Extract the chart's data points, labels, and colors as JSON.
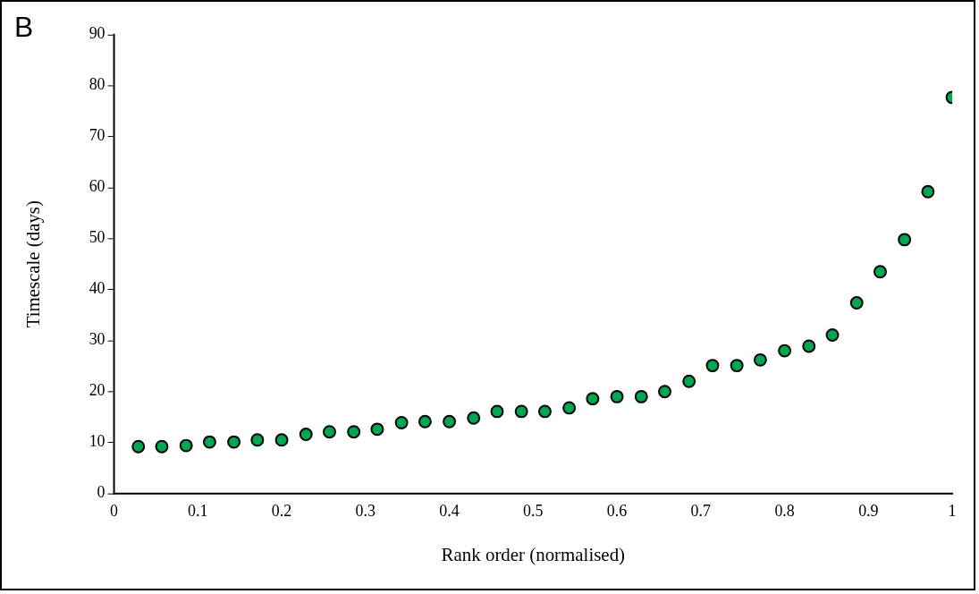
{
  "chart_data": {
    "type": "scatter",
    "xlabel": "Rank order (normalised)",
    "ylabel": "Timescale (days)",
    "annotations": [
      "B"
    ],
    "x": [
      0.029,
      0.057,
      0.086,
      0.114,
      0.143,
      0.171,
      0.2,
      0.229,
      0.257,
      0.286,
      0.314,
      0.343,
      0.371,
      0.4,
      0.429,
      0.457,
      0.486,
      0.514,
      0.543,
      0.571,
      0.6,
      0.629,
      0.657,
      0.686,
      0.714,
      0.743,
      0.771,
      0.8,
      0.829,
      0.857,
      0.886,
      0.914,
      0.943,
      0.971,
      1
    ],
    "series": [
      {
        "color": "#00a651",
        "values": [
          9.2,
          9.2,
          9.4,
          10.1,
          10.1,
          10.5,
          10.5,
          11.6,
          12.1,
          12.1,
          12.6,
          13.9,
          14.1,
          14.1,
          14.8,
          16.1,
          16.1,
          16.1,
          16.8,
          18.6,
          19.0,
          19.0,
          20.0,
          22.0,
          25.1,
          25.1,
          26.2,
          28.0,
          28.9,
          31.1,
          37.4,
          43.5,
          49.8,
          59.2,
          77.7
        ]
      }
    ],
    "xlim": [
      0,
      1
    ],
    "xticks": [
      0,
      0.1,
      0.2,
      0.3,
      0.4,
      0.5,
      0.6,
      0.7,
      0.8,
      0.9,
      1
    ],
    "ylim": [
      0,
      90
    ],
    "yticks": [
      0,
      10,
      20,
      30,
      40,
      50,
      60,
      70,
      80,
      90
    ],
    "grid": false,
    "legend": false,
    "marker": "circle"
  }
}
